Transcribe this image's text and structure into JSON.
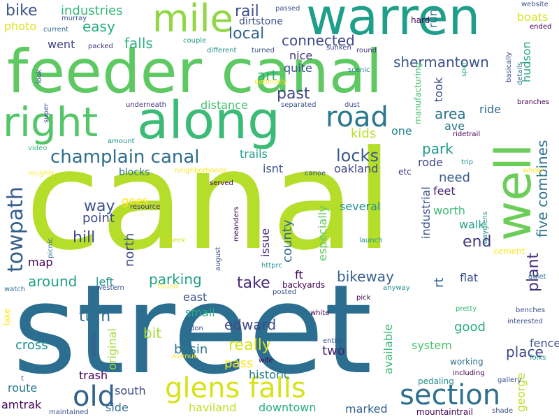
{
  "words": [
    {
      "text": "street",
      "color": "#2c6e8f"
    },
    {
      "text": "canal",
      "color": "#b5de2b"
    },
    {
      "text": "feeder canal",
      "color": "#5ec962"
    },
    {
      "text": "along",
      "color": "#3bbb75"
    },
    {
      "text": "warren",
      "color": "#1f9e89"
    },
    {
      "text": "well",
      "color": "#6ccd5a"
    },
    {
      "text": "right",
      "color": "#54c568"
    },
    {
      "text": "mile",
      "color": "#90d743"
    },
    {
      "text": "glens falls",
      "color": "#d8e219"
    },
    {
      "text": "section",
      "color": "#2d708e"
    },
    {
      "text": "old",
      "color": "#33638d"
    },
    {
      "text": "road",
      "color": "#2a788e"
    },
    {
      "text": "towpath",
      "color": "#355f8d"
    },
    {
      "text": "champlain canal",
      "color": "#2e6d8e"
    },
    {
      "text": "locks",
      "color": "#38588c"
    },
    {
      "text": "plant",
      "color": "#46307e"
    },
    {
      "text": "five combines",
      "color": "#2c728e"
    },
    {
      "text": "way",
      "color": "#3b528b"
    },
    {
      "text": "hill",
      "color": "#3e4989"
    },
    {
      "text": "past",
      "color": "#3f4788"
    },
    {
      "text": "local",
      "color": "#33638d"
    },
    {
      "text": "bike",
      "color": "#39568c"
    },
    {
      "text": "industries",
      "color": "#35b779"
    },
    {
      "text": "rail",
      "color": "#3b528b"
    },
    {
      "text": "easy",
      "color": "#25ab82"
    },
    {
      "text": "connected",
      "color": "#3e4989"
    },
    {
      "text": "shermantown",
      "color": "#3b528b"
    },
    {
      "text": "falls",
      "color": "#2db27d"
    },
    {
      "text": "went",
      "color": "#424086"
    },
    {
      "text": "art",
      "color": "#29af7f"
    },
    {
      "text": "nice",
      "color": "#46307e"
    },
    {
      "text": "quite",
      "color": "#3b528b"
    },
    {
      "text": "area",
      "color": "#2c728e"
    },
    {
      "text": "ave",
      "color": "#2b748e"
    },
    {
      "text": "ride",
      "color": "#31688e"
    },
    {
      "text": "park",
      "color": "#1f978b"
    },
    {
      "text": "kids",
      "color": "#b5de2b"
    },
    {
      "text": "one",
      "color": "#25848e"
    },
    {
      "text": "take",
      "color": "#482878"
    },
    {
      "text": "parking",
      "color": "#1fa088"
    },
    {
      "text": "around",
      "color": "#1fa188"
    },
    {
      "text": "edward",
      "color": "#3e4989"
    },
    {
      "text": "turn",
      "color": "#2e6e8e"
    },
    {
      "text": "really",
      "color": "#d8e219"
    },
    {
      "text": "bit",
      "color": "#a5db36"
    },
    {
      "text": "basin",
      "color": "#2a788e"
    },
    {
      "text": "cross",
      "color": "#218e8d"
    },
    {
      "text": "pass",
      "color": "#fde725"
    },
    {
      "text": "historic",
      "color": "#287d8e"
    },
    {
      "text": "two",
      "color": "#481f70"
    },
    {
      "text": "system",
      "color": "#4ac16d"
    },
    {
      "text": "good",
      "color": "#26ad81"
    },
    {
      "text": "fence",
      "color": "#3b528b"
    },
    {
      "text": "place",
      "color": "#3f4788"
    },
    {
      "text": "bikeway",
      "color": "#355f8d"
    },
    {
      "text": "end",
      "color": "#443983"
    },
    {
      "text": "walk",
      "color": "#20a386"
    },
    {
      "text": "worth",
      "color": "#3dbc74"
    },
    {
      "text": "need",
      "color": "#38588c"
    },
    {
      "text": "feet",
      "color": "#482878"
    },
    {
      "text": "oakland",
      "color": "#404688"
    },
    {
      "text": "trails",
      "color": "#1f9e89"
    },
    {
      "text": "isnt",
      "color": "#3b528b"
    },
    {
      "text": "blocks",
      "color": "#2c728e"
    },
    {
      "text": "goes",
      "color": "#fde725"
    },
    {
      "text": "point",
      "color": "#3e4c8a"
    },
    {
      "text": "north",
      "color": "#3e4989"
    },
    {
      "text": "county",
      "color": "#31688e"
    },
    {
      "text": "especially",
      "color": "#5ec962"
    },
    {
      "text": "several",
      "color": "#21918c"
    },
    {
      "text": "issue",
      "color": "#482878"
    },
    {
      "text": "distance",
      "color": "#44bf70"
    },
    {
      "text": "map",
      "color": "#440154"
    },
    {
      "text": "left",
      "color": "#21918c"
    },
    {
      "text": "east",
      "color": "#3b528b"
    },
    {
      "text": "small",
      "color": "#25ab82"
    },
    {
      "text": "original",
      "color": "#a5db36"
    },
    {
      "text": "trash",
      "color": "#440154"
    },
    {
      "text": "south",
      "color": "#3e4989"
    },
    {
      "text": "side",
      "color": "#2e6e8e"
    },
    {
      "text": "route",
      "color": "#2a788e"
    },
    {
      "text": "amtrak",
      "color": "#440154"
    },
    {
      "text": "haviland",
      "color": "#c0df25"
    },
    {
      "text": "downtown",
      "color": "#29af7f"
    },
    {
      "text": "marked",
      "color": "#35608d"
    },
    {
      "text": "ft",
      "color": "#440154"
    },
    {
      "text": "rt",
      "color": "#33638d"
    },
    {
      "text": "flat",
      "color": "#3b528b"
    },
    {
      "text": "available",
      "color": "#3dbc74"
    },
    {
      "text": "george",
      "color": "#b8de29"
    },
    {
      "text": "hudson",
      "color": "#22a785"
    },
    {
      "text": "industrial",
      "color": "#3b528b"
    },
    {
      "text": "rode",
      "color": "#404688"
    },
    {
      "text": "took",
      "color": "#3e4989"
    },
    {
      "text": "run",
      "color": "#2e6e8e"
    },
    {
      "text": "dirtstone",
      "color": "#3b528b"
    },
    {
      "text": "photo",
      "color": "#dde318"
    },
    {
      "text": "boats",
      "color": "#d8e219"
    },
    {
      "text": "hard",
      "color": "#440154"
    },
    {
      "text": "passed",
      "color": "#3b528b"
    },
    {
      "text": "current",
      "color": "#2e6e8e"
    },
    {
      "text": "murray",
      "color": "#3b528b"
    },
    {
      "text": "packed",
      "color": "#46307e"
    },
    {
      "text": "couple",
      "color": "#1f9e89"
    },
    {
      "text": "different",
      "color": "#21918c"
    },
    {
      "text": "turned",
      "color": "#3b528b"
    },
    {
      "text": "sunken",
      "color": "#3e4989"
    },
    {
      "text": "round",
      "color": "#46307e"
    },
    {
      "text": "website",
      "color": "#3b528b"
    },
    {
      "text": "ended",
      "color": "#440154"
    },
    {
      "text": "look",
      "color": "#3b528b"
    },
    {
      "text": "definitely",
      "color": "#fde725"
    },
    {
      "text": "scenic",
      "color": "#2a788e"
    },
    {
      "text": "manufacturing",
      "color": "#4ac16d"
    },
    {
      "text": "spur",
      "color": "#35b779"
    },
    {
      "text": "basically",
      "color": "#3e4989"
    },
    {
      "text": "details",
      "color": "#2c728e"
    },
    {
      "text": "branches",
      "color": "#440154"
    },
    {
      "text": "super",
      "color": "#3b528b"
    },
    {
      "text": "underneath",
      "color": "#46307e"
    },
    {
      "text": "separated",
      "color": "#3b528b"
    },
    {
      "text": "dust",
      "color": "#3b528b"
    },
    {
      "text": "amount",
      "color": "#21918c"
    },
    {
      "text": "ridetrail",
      "color": "#440154"
    },
    {
      "text": "video",
      "color": "#35b779"
    },
    {
      "text": "roughly",
      "color": "#fde725"
    },
    {
      "text": "neighborhoods",
      "color": "#fde725"
    },
    {
      "text": "canoe",
      "color": "#3e4989"
    },
    {
      "text": "etc",
      "color": "#46307e"
    },
    {
      "text": "trip",
      "color": "#21918c"
    },
    {
      "text": "whole",
      "color": "#fde725"
    },
    {
      "text": "served",
      "color": "#440154"
    },
    {
      "text": "resource",
      "color": "#46307e"
    },
    {
      "text": "meanders",
      "color": "#440154"
    },
    {
      "text": "check",
      "color": "#d8e219"
    },
    {
      "text": "launch",
      "color": "#21918c"
    },
    {
      "text": "august",
      "color": "#3b528b"
    },
    {
      "text": "httprc",
      "color": "#21918c"
    },
    {
      "text": "picnic",
      "color": "#2e6e8e"
    },
    {
      "text": "wayglens",
      "color": "#21918c"
    },
    {
      "text": "cement",
      "color": "#fde725"
    },
    {
      "text": "quiet",
      "color": "#2e6e8e"
    },
    {
      "text": "watch",
      "color": "#2e6e8e"
    },
    {
      "text": "western",
      "color": "#3b528b"
    },
    {
      "text": "found",
      "color": "#fde725"
    },
    {
      "text": "backyards",
      "color": "#440154"
    },
    {
      "text": "posted",
      "color": "#3b528b"
    },
    {
      "text": "anyway",
      "color": "#21918c"
    },
    {
      "text": "pick",
      "color": "#440154"
    },
    {
      "text": "pretty",
      "color": "#35b779"
    },
    {
      "text": "benches",
      "color": "#3b528b"
    },
    {
      "text": "interested",
      "color": "#3b528b"
    },
    {
      "text": "lake",
      "color": "#fde725"
    },
    {
      "text": "don",
      "color": "#3e4989"
    },
    {
      "text": "avenue",
      "color": "#fde725"
    },
    {
      "text": "white",
      "color": "#440154"
    },
    {
      "text": "folks",
      "color": "#21918c"
    },
    {
      "text": "pieces",
      "color": "#3b528b"
    },
    {
      "text": "wife",
      "color": "#440154"
    },
    {
      "text": "entire",
      "color": "#3b528b"
    },
    {
      "text": "working",
      "color": "#2e6e8e"
    },
    {
      "text": "including",
      "color": "#440154"
    },
    {
      "text": "gallery",
      "color": "#3b528b"
    },
    {
      "text": "pedaling",
      "color": "#21918c"
    },
    {
      "text": "t",
      "color": "#3b528b"
    },
    {
      "text": "maintained",
      "color": "#3b528b"
    },
    {
      "text": "mountaintrail",
      "color": "#440154"
    },
    {
      "text": "shade",
      "color": "#3b528b"
    }
  ]
}
